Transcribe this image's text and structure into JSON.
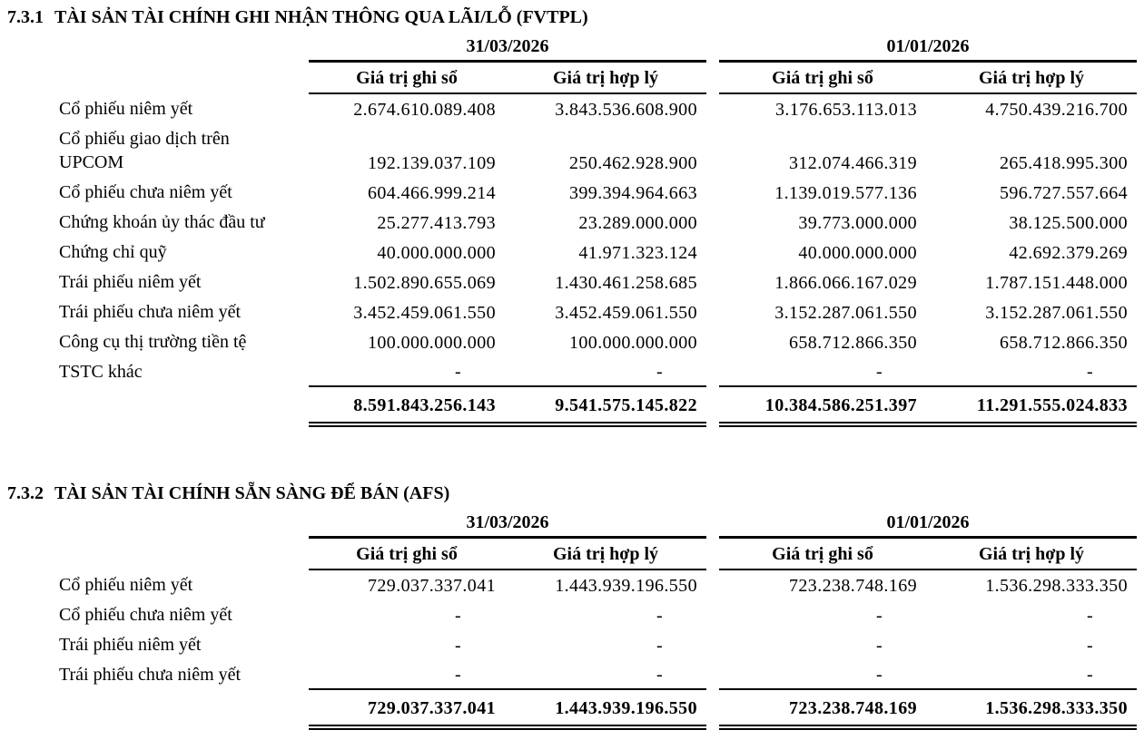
{
  "document": {
    "background": "#ffffff",
    "text_color": "#000000",
    "sections": [
      {
        "number": "7.3.1",
        "title": "TÀI SẢN TÀI CHÍNH GHI NHẬN THÔNG QUA LÃI/LỖ (FVTPL)",
        "date_columns": [
          "31/03/2026",
          "01/01/2026"
        ],
        "sub_headers": [
          "Giá trị ghi sổ",
          "Giá trị hợp lý",
          "Giá trị ghi sổ",
          "Giá trị hợp lý"
        ],
        "rows": [
          {
            "label": "Cổ phiếu niêm yết",
            "values": [
              "2.674.610.089.408",
              "3.843.536.608.900",
              "3.176.653.113.013",
              "4.750.439.216.700"
            ]
          },
          {
            "label": "Cổ phiếu giao dịch trên\nUPCOM",
            "values": [
              "192.139.037.109",
              "250.462.928.900",
              "312.074.466.319",
              "265.418.995.300"
            ]
          },
          {
            "label": "Cổ phiếu chưa niêm yết",
            "values": [
              "604.466.999.214",
              "399.394.964.663",
              "1.139.019.577.136",
              "596.727.557.664"
            ]
          },
          {
            "label": "Chứng khoán ủy thác đầu tư",
            "values": [
              "25.277.413.793",
              "23.289.000.000",
              "39.773.000.000",
              "38.125.500.000"
            ]
          },
          {
            "label": "Chứng chỉ quỹ",
            "values": [
              "40.000.000.000",
              "41.971.323.124",
              "40.000.000.000",
              "42.692.379.269"
            ]
          },
          {
            "label": "Trái phiếu niêm yết",
            "values": [
              "1.502.890.655.069",
              "1.430.461.258.685",
              "1.866.066.167.029",
              "1.787.151.448.000"
            ]
          },
          {
            "label": "Trái phiếu chưa niêm yết",
            "values": [
              "3.452.459.061.550",
              "3.452.459.061.550",
              "3.152.287.061.550",
              "3.152.287.061.550"
            ]
          },
          {
            "label": "Công cụ thị trường tiền tệ",
            "values": [
              "100.000.000.000",
              "100.000.000.000",
              "658.712.866.350",
              "658.712.866.350"
            ]
          },
          {
            "label": "TSTC khác",
            "values": [
              "-",
              "-",
              "-",
              "-"
            ]
          }
        ],
        "totals": [
          "8.591.843.256.143",
          "9.541.575.145.822",
          "10.384.586.251.397",
          "11.291.555.024.833"
        ]
      },
      {
        "number": "7.3.2",
        "title": "TÀI SẢN TÀI CHÍNH SẴN SÀNG ĐỂ BÁN (AFS)",
        "date_columns": [
          "31/03/2026",
          "01/01/2026"
        ],
        "sub_headers": [
          "Giá trị ghi sổ",
          "Giá trị hợp lý",
          "Giá trị ghi sổ",
          "Giá trị hợp lý"
        ],
        "rows": [
          {
            "label": "Cổ phiếu niêm yết",
            "values": [
              "729.037.337.041",
              "1.443.939.196.550",
              "723.238.748.169",
              "1.536.298.333.350"
            ]
          },
          {
            "label": "Cổ phiếu chưa niêm yết",
            "values": [
              "-",
              "-",
              "-",
              "-"
            ]
          },
          {
            "label": "Trái phiếu niêm yết",
            "values": [
              "-",
              "-",
              "-",
              "-"
            ]
          },
          {
            "label": "Trái phiếu chưa niêm yết",
            "values": [
              "-",
              "-",
              "-",
              "-"
            ]
          }
        ],
        "totals": [
          "729.037.337.041",
          "1.443.939.196.550",
          "723.238.748.169",
          "1.536.298.333.350"
        ]
      }
    ]
  }
}
